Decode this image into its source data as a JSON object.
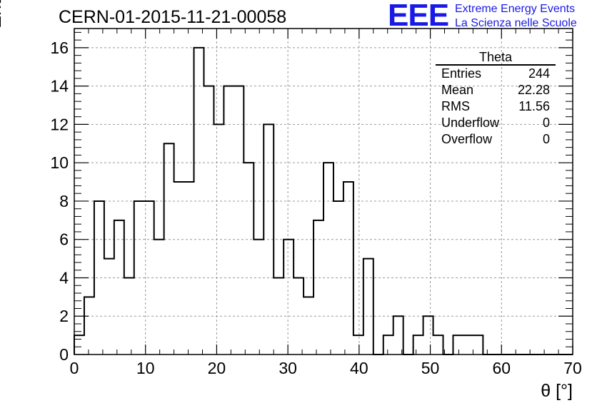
{
  "header": {
    "title": "CERN-01-2015-11-21-00058"
  },
  "logo": {
    "mark": "EEE",
    "line1": "Extreme Energy Events",
    "line2": "La Scienza nelle Scuole",
    "color": "#1a1ae6"
  },
  "stats_box": {
    "title": "Theta",
    "rows": [
      {
        "label": "Entries",
        "value": "244"
      },
      {
        "label": "Mean",
        "value": "22.28"
      },
      {
        "label": "RMS",
        "value": "11.56"
      },
      {
        "label": "Underflow",
        "value": "0"
      },
      {
        "label": "Overflow",
        "value": "0"
      }
    ]
  },
  "chart_data": {
    "type": "bar",
    "xlabel": "θ [°]",
    "ylabel": "Entries/bin",
    "xlim": [
      0,
      70
    ],
    "ylim": [
      0,
      17
    ],
    "grid": true,
    "bin_width": 1.4,
    "x_ticks": [
      "0",
      "10",
      "20",
      "30",
      "40",
      "50",
      "60",
      "70"
    ],
    "y_ticks": [
      "0",
      "2",
      "4",
      "6",
      "8",
      "10",
      "12",
      "14",
      "16"
    ],
    "values": [
      1,
      3,
      8,
      5,
      7,
      4,
      8,
      8,
      6,
      11,
      9,
      9,
      16,
      14,
      12,
      14,
      14,
      10,
      6,
      12,
      4,
      6,
      4,
      3,
      7,
      10,
      8,
      9,
      1,
      5,
      0,
      1,
      2,
      0,
      1,
      2,
      1,
      0,
      1,
      1,
      1,
      0,
      0,
      0,
      0,
      0,
      0,
      0,
      0,
      0
    ]
  }
}
